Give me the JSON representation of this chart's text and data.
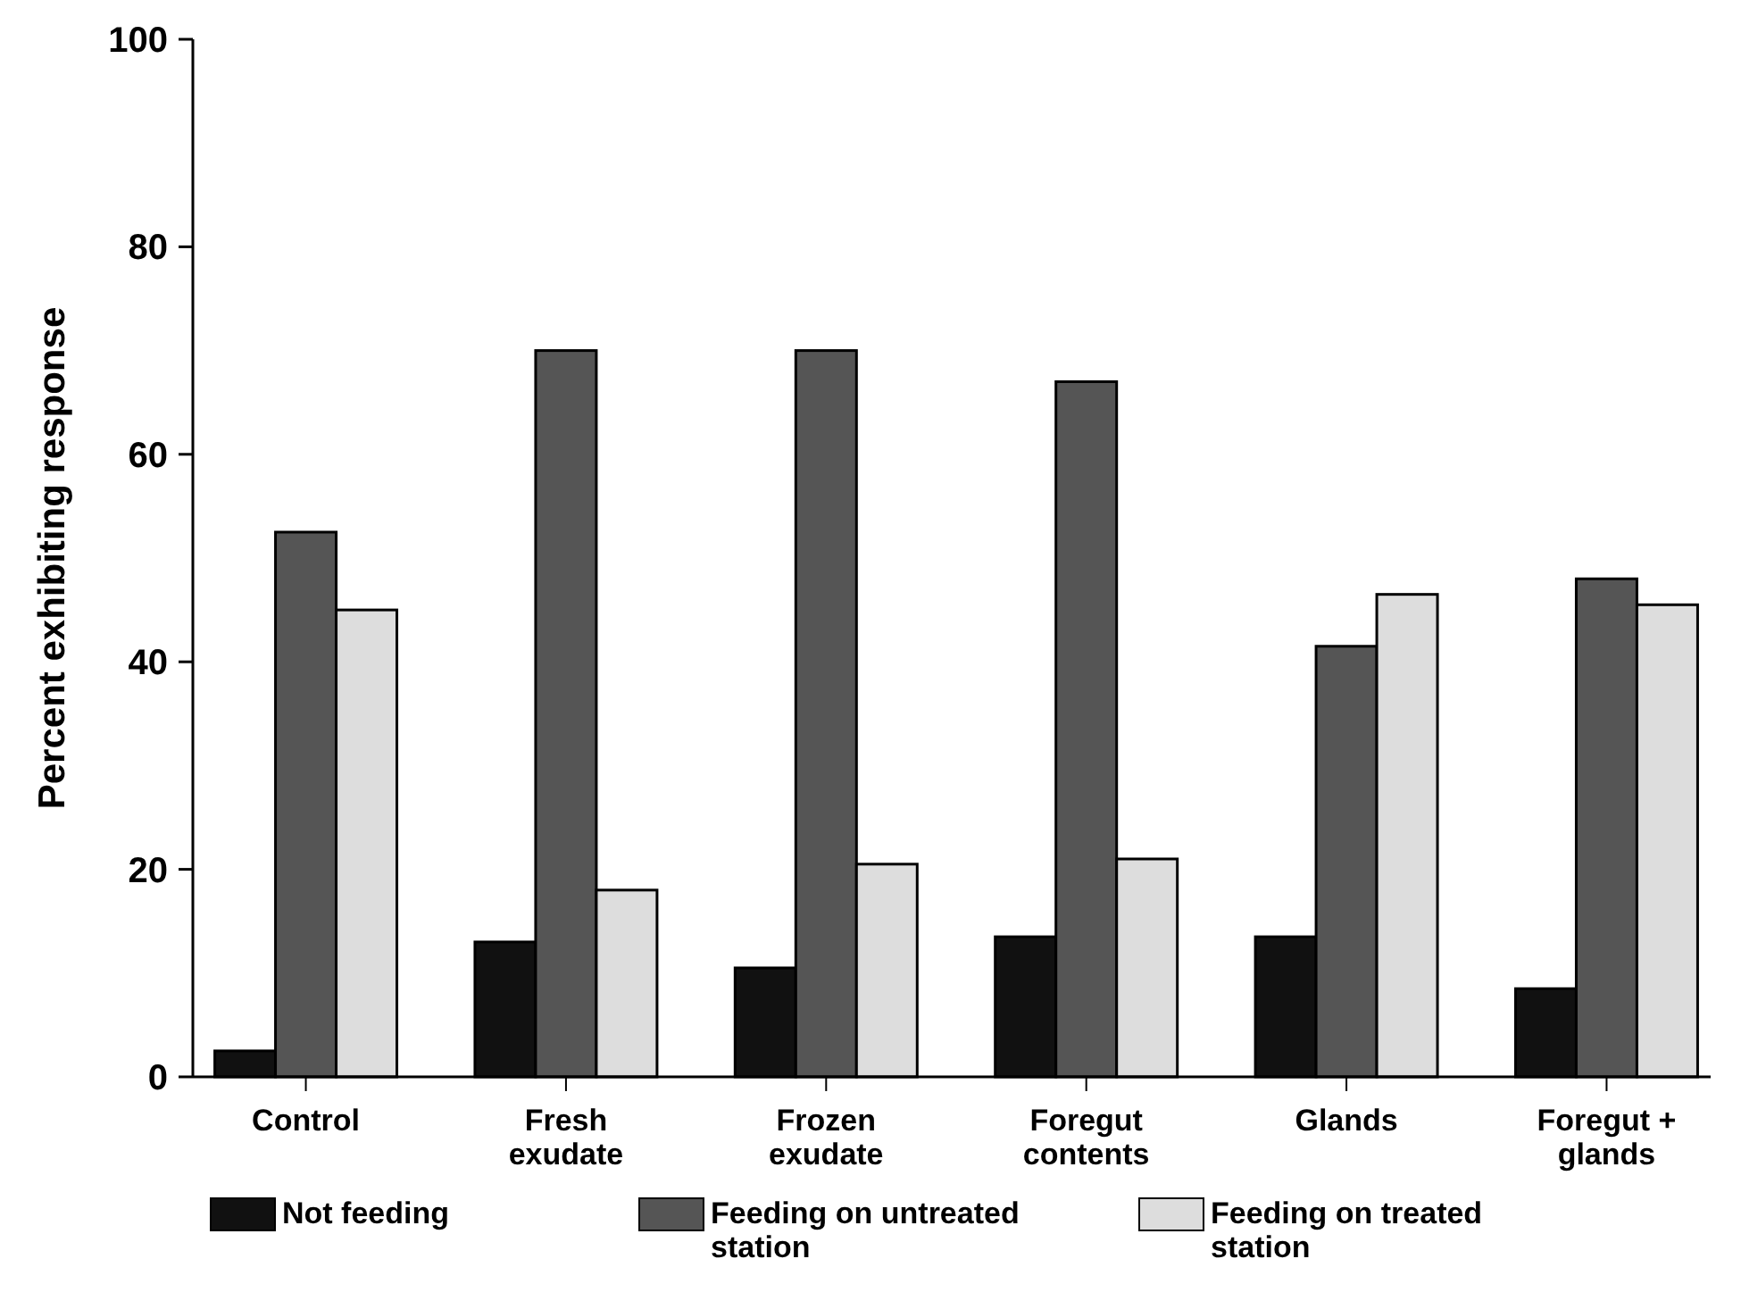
{
  "chart_data": {
    "type": "bar",
    "ylabel": "Percent exhibiting response",
    "categories": [
      "Control",
      "Fresh exudate",
      "Frozen exudate",
      "Foregut contents",
      "Glands",
      "Foregut + glands"
    ],
    "series": [
      {
        "name": "Not feeding",
        "color": "#111111",
        "values": [
          2.5,
          13,
          10.5,
          13.5,
          13.5,
          8.5
        ]
      },
      {
        "name": "Feeding on untreated station",
        "color": "#555555",
        "values": [
          52.5,
          70,
          70,
          67,
          41.5,
          48
        ]
      },
      {
        "name": "Feeding on treated station",
        "color": "#dddddd",
        "values": [
          45,
          18,
          20.5,
          21,
          46.5,
          45.5
        ]
      }
    ],
    "ylim": [
      0,
      100
    ],
    "yticks": [
      0,
      20,
      40,
      60,
      80,
      100
    ],
    "grid": false,
    "legend": "bottom"
  }
}
